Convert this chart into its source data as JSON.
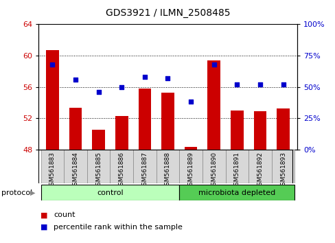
{
  "title": "GDS3921 / ILMN_2508485",
  "samples": [
    "GSM561883",
    "GSM561884",
    "GSM561885",
    "GSM561886",
    "GSM561887",
    "GSM561888",
    "GSM561889",
    "GSM561890",
    "GSM561891",
    "GSM561892",
    "GSM561893"
  ],
  "counts": [
    60.7,
    53.3,
    50.5,
    52.3,
    55.8,
    55.3,
    48.3,
    59.4,
    53.0,
    52.9,
    53.2
  ],
  "percentiles": [
    68,
    56,
    46,
    50,
    58,
    57,
    38,
    68,
    52,
    52,
    52
  ],
  "ylim_left": [
    48,
    64
  ],
  "ylim_right": [
    0,
    100
  ],
  "yticks_left": [
    48,
    52,
    56,
    60,
    64
  ],
  "yticks_right": [
    0,
    25,
    50,
    75,
    100
  ],
  "bar_color": "#cc0000",
  "dot_color": "#0000cc",
  "bar_bottom": 48,
  "control_samples": 6,
  "control_label": "control",
  "treatment_label": "microbiota depleted",
  "protocol_label": "protocol",
  "control_color": "#bbffbb",
  "treatment_color": "#55cc55",
  "legend_count_label": "count",
  "legend_percentile_label": "percentile rank within the sample",
  "bg_color": "#ffffff",
  "tick_label_color_left": "#cc0000",
  "tick_label_color_right": "#0000cc"
}
